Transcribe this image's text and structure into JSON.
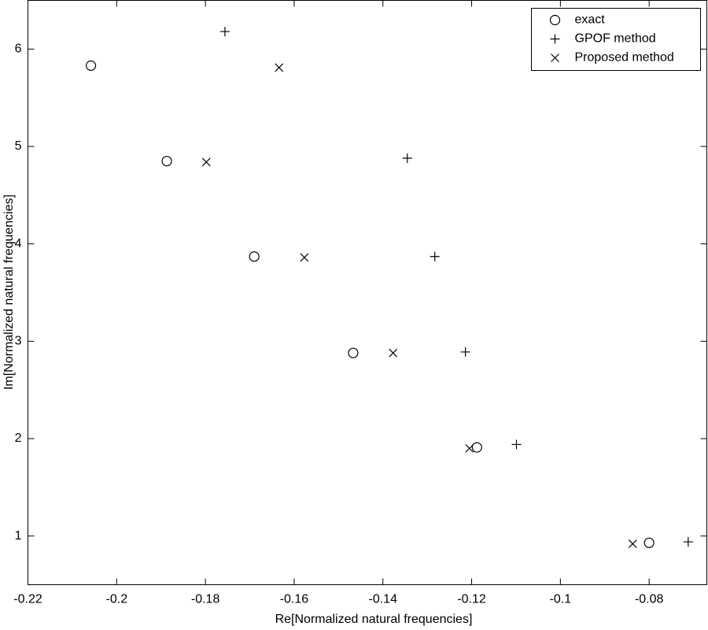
{
  "chart_data": {
    "type": "scatter",
    "x_label": "Re[Normalized natural frequencies]",
    "y_label": "Im[Normalized natural frequencies]",
    "xlim": [
      -0.22,
      -0.067
    ],
    "ylim": [
      0.5,
      6.5
    ],
    "xticks": [
      -0.22,
      -0.2,
      -0.18,
      -0.16,
      -0.14,
      -0.12,
      -0.1,
      -0.08
    ],
    "yticks": [
      1,
      2,
      3,
      4,
      5,
      6
    ],
    "grid": false,
    "legend": "upper right",
    "series": [
      {
        "name": "exact",
        "color": "#000000",
        "marker": "o",
        "x": [
          -0.2058,
          -0.1887,
          -0.169,
          -0.1467,
          -0.1188,
          -0.08
        ],
        "values": [
          5.83,
          4.85,
          3.87,
          2.88,
          1.91,
          0.93
        ]
      },
      {
        "name": "GPOF method",
        "color": "#000000",
        "marker": "+",
        "x": [
          -0.1756,
          -0.1345,
          -0.1283,
          -0.1214,
          -0.1099,
          -0.0712
        ],
        "values": [
          6.18,
          4.88,
          3.87,
          2.89,
          1.94,
          0.94
        ]
      },
      {
        "name": "Proposed method",
        "color": "#000000",
        "marker": "x",
        "x": [
          -0.1634,
          -0.1798,
          -0.1577,
          -0.1377,
          -0.1205,
          -0.0837
        ],
        "values": [
          5.81,
          4.84,
          3.86,
          2.88,
          1.9,
          0.92
        ]
      }
    ]
  }
}
